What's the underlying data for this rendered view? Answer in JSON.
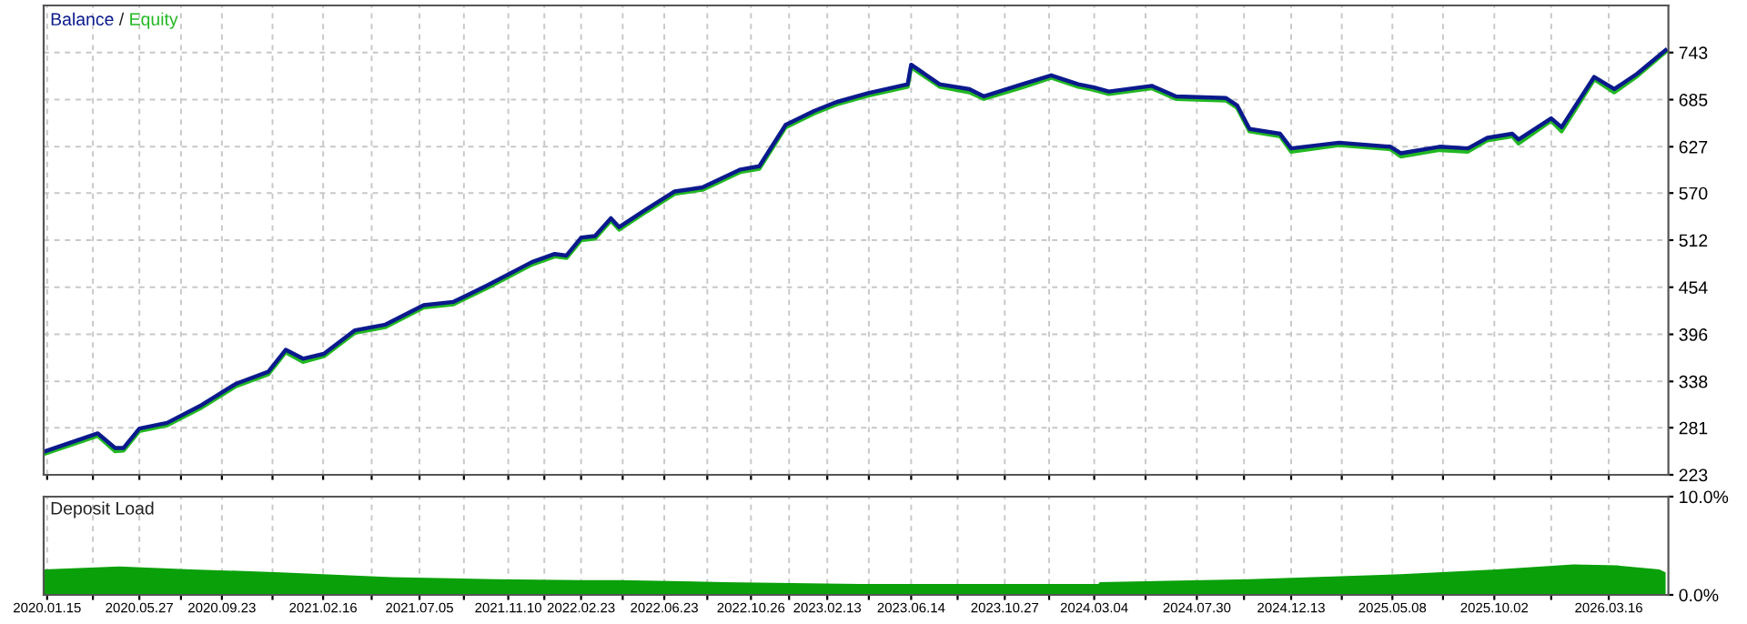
{
  "chart_data": [
    {
      "type": "line",
      "legend": "top left",
      "grid": true,
      "tick_labels": "y",
      "annotations": [
        "/"
      ],
      "xlim": [
        "2020-01-10",
        "2026-06-10"
      ],
      "ylim": [
        223,
        801
      ],
      "xticks": [
        "2020-01-15",
        "2020-03-21",
        "2020-05-27",
        "2020-07-26",
        "2020-09-23",
        "2020-12-05",
        "2021-02-16",
        "2021-04-27",
        "2021-07-05",
        "2021-09-07",
        "2021-11-10",
        "2022-01-01",
        "2022-02-23",
        "2022-04-24",
        "2022-06-23",
        "2022-08-24",
        "2022-10-26",
        "2022-12-20",
        "2023-02-13",
        "2023-04-14",
        "2023-06-14",
        "2023-08-20",
        "2023-10-27",
        "2023-12-30",
        "2024-03-04",
        "2024-05-17",
        "2024-07-30",
        "2024-10-06",
        "2024-12-13",
        "2025-02-24",
        "2025-05-08",
        "2025-07-20",
        "2025-10-02",
        "2025-12-23",
        "2026-03-16"
      ],
      "yticks": [
        223,
        281,
        338,
        396,
        454,
        512,
        570,
        627,
        685,
        743
      ],
      "x": [
        "2020-01-12",
        "2020-03-28",
        "2020-04-22",
        "2020-05-04",
        "2020-05-27",
        "2020-07-06",
        "2020-08-25",
        "2020-10-13",
        "2020-11-29",
        "2020-12-24",
        "2021-01-18",
        "2021-02-17",
        "2021-04-03",
        "2021-05-17",
        "2021-07-11",
        "2021-08-23",
        "2021-10-10",
        "2021-12-14",
        "2022-01-16",
        "2022-02-02",
        "2022-02-23",
        "2022-03-15",
        "2022-04-07",
        "2022-04-19",
        "2022-05-28",
        "2022-07-08",
        "2022-08-17",
        "2022-10-11",
        "2022-11-07",
        "2022-12-15",
        "2023-01-25",
        "2023-02-26",
        "2023-04-13",
        "2023-06-09",
        "2023-06-14",
        "2023-07-25",
        "2023-09-06",
        "2023-09-27",
        "2023-11-21",
        "2024-01-02",
        "2024-02-10",
        "2024-03-04",
        "2024-03-25",
        "2024-05-26",
        "2024-06-30",
        "2024-09-10",
        "2024-09-26",
        "2024-10-14",
        "2024-11-27",
        "2024-12-13",
        "2025-02-20",
        "2025-05-05",
        "2025-05-20",
        "2025-07-15",
        "2025-08-25",
        "2025-09-22",
        "2025-10-28",
        "2025-11-06",
        "2025-12-23",
        "2026-01-07",
        "2026-02-23",
        "2026-03-24",
        "2026-04-26",
        "2026-06-06"
      ],
      "series": [
        {
          "name": "Equity",
          "color": "#22b822",
          "values": [
            249,
            271,
            252,
            253,
            277,
            284,
            306,
            332,
            347,
            374,
            362,
            369,
            398,
            405,
            429,
            433,
            453,
            482,
            492,
            490,
            512,
            514,
            536,
            525,
            547,
            569,
            574,
            596,
            600,
            651,
            668,
            679,
            690,
            701,
            725,
            701,
            694,
            686,
            700,
            712,
            701,
            697,
            692,
            699,
            686,
            684,
            675,
            646,
            640,
            621,
            629,
            624,
            615,
            623,
            621,
            635,
            640,
            631,
            659,
            646,
            710,
            694,
            714,
            744
          ]
        },
        {
          "name": "Balance",
          "color": "#0a1a8c",
          "values": [
            252,
            274,
            256,
            256,
            280,
            287,
            309,
            335,
            350,
            377,
            366,
            372,
            401,
            408,
            432,
            436,
            456,
            485,
            495,
            493,
            515,
            517,
            539,
            528,
            550,
            572,
            577,
            599,
            603,
            654,
            671,
            682,
            693,
            704,
            728,
            704,
            698,
            689,
            704,
            715,
            704,
            700,
            695,
            702,
            689,
            687,
            678,
            649,
            643,
            625,
            632,
            627,
            619,
            627,
            625,
            638,
            643,
            636,
            662,
            651,
            713,
            698,
            717,
            746
          ]
        }
      ]
    },
    {
      "type": "area",
      "title": "Deposit Load",
      "grid": "x",
      "color": "#0aa00a",
      "xlim": [
        "2020-01-10",
        "2026-06-10"
      ],
      "ylim": [
        0,
        10
      ],
      "xticks": [
        {
          "value": "2020-01-15",
          "label": "2020.01.15"
        },
        {
          "value": "2020-03-21",
          "label": null
        },
        {
          "value": "2020-05-27",
          "label": "2020.05.27"
        },
        {
          "value": "2020-07-26",
          "label": null
        },
        {
          "value": "2020-09-23",
          "label": "2020.09.23"
        },
        {
          "value": "2020-12-05",
          "label": null
        },
        {
          "value": "2021-02-16",
          "label": "2021.02.16"
        },
        {
          "value": "2021-04-27",
          "label": null
        },
        {
          "value": "2021-07-05",
          "label": "2021.07.05"
        },
        {
          "value": "2021-09-07",
          "label": null
        },
        {
          "value": "2021-11-10",
          "label": "2021.11.10"
        },
        {
          "value": "2022-01-01",
          "label": null
        },
        {
          "value": "2022-02-23",
          "label": "2022.02.23"
        },
        {
          "value": "2022-04-24",
          "label": null
        },
        {
          "value": "2022-06-23",
          "label": "2022.06.23"
        },
        {
          "value": "2022-08-24",
          "label": null
        },
        {
          "value": "2022-10-26",
          "label": "2022.10.26"
        },
        {
          "value": "2022-12-20",
          "label": null
        },
        {
          "value": "2023-02-13",
          "label": "2023.02.13"
        },
        {
          "value": "2023-04-14",
          "label": null
        },
        {
          "value": "2023-06-14",
          "label": "2023.06.14"
        },
        {
          "value": "2023-08-20",
          "label": null
        },
        {
          "value": "2023-10-27",
          "label": "2023.10.27"
        },
        {
          "value": "2023-12-30",
          "label": null
        },
        {
          "value": "2024-03-04",
          "label": "2024.03.04"
        },
        {
          "value": "2024-05-17",
          "label": null
        },
        {
          "value": "2024-07-30",
          "label": "2024.07.30"
        },
        {
          "value": "2024-10-06",
          "label": null
        },
        {
          "value": "2024-12-13",
          "label": "2024.12.13"
        },
        {
          "value": "2025-02-24",
          "label": null
        },
        {
          "value": "2025-05-08",
          "label": "2025.05.08"
        },
        {
          "value": "2025-07-20",
          "label": null
        },
        {
          "value": "2025-10-02",
          "label": "2025.10.02"
        },
        {
          "value": "2025-12-23",
          "label": null
        },
        {
          "value": "2026-03-16",
          "label": "2026.03.16"
        }
      ],
      "yticks": [
        {
          "value": 0,
          "label": "0.0%"
        },
        {
          "value": 10,
          "label": "10.0%"
        }
      ],
      "x": [
        "2020-01-10",
        "2020-04-28",
        "2020-08-10",
        "2020-12-17",
        "2021-05-26",
        "2021-10-22",
        "2022-02-21",
        "2022-04-19",
        "2022-09-17",
        "2023-04-01",
        "2024-03-10",
        "2024-03-12",
        "2024-10-14",
        "2025-05-20",
        "2025-10-05",
        "2026-01-24",
        "2026-03-28",
        "2026-05-28",
        "2026-06-06"
      ],
      "values": [
        2.6,
        2.9,
        2.6,
        2.3,
        1.8,
        1.6,
        1.5,
        1.5,
        1.3,
        1.1,
        1.1,
        1.3,
        1.6,
        2.1,
        2.6,
        3.1,
        3.0,
        2.6,
        2.3
      ]
    }
  ]
}
